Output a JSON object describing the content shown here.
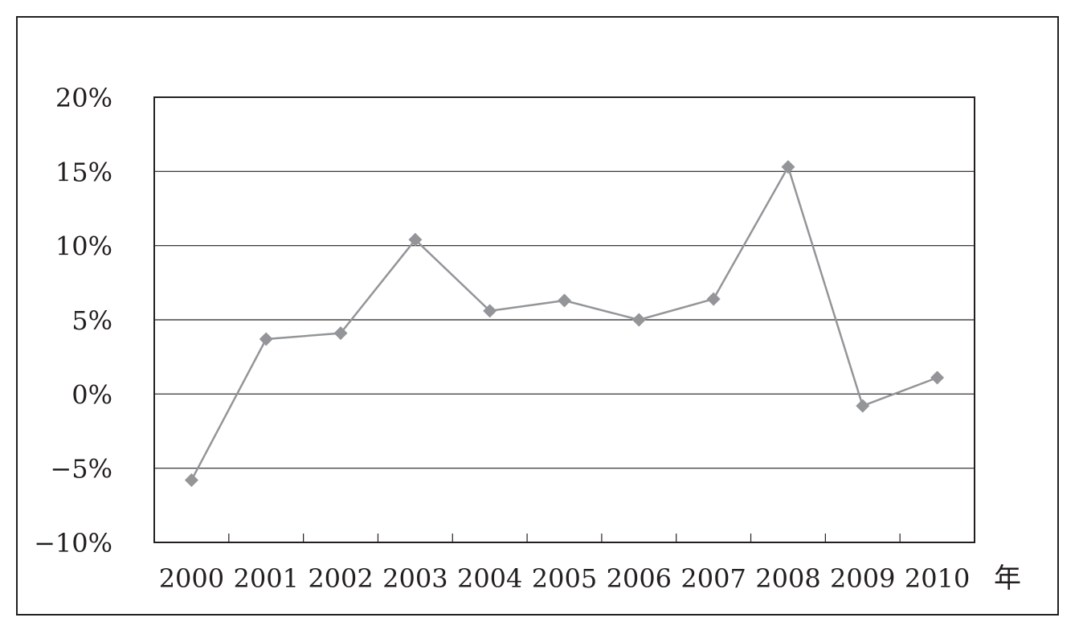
{
  "chart_data": {
    "type": "line",
    "title": "",
    "xlabel": "年",
    "ylabel": "",
    "categories": [
      "2000",
      "2001",
      "2002",
      "2003",
      "2004",
      "2005",
      "2006",
      "2007",
      "2008",
      "2009",
      "2010"
    ],
    "series": [
      {
        "values": [
          -5.8,
          3.7,
          4.1,
          10.4,
          5.6,
          6.3,
          5.0,
          6.4,
          15.3,
          -0.8,
          1.1
        ]
      }
    ],
    "ylim": [
      -10,
      20
    ],
    "yticks": [
      -10,
      -5,
      0,
      5,
      10,
      15,
      20
    ],
    "ytick_labels": [
      "−10%",
      "−5%",
      "0%",
      "5%",
      "10%",
      "15%",
      "20%"
    ],
    "grid": true,
    "legend": "none",
    "colors": {
      "line": "#939598",
      "marker": "#939598",
      "axis": "#231f20",
      "grid": "#231f20"
    },
    "marker": "diamond"
  }
}
